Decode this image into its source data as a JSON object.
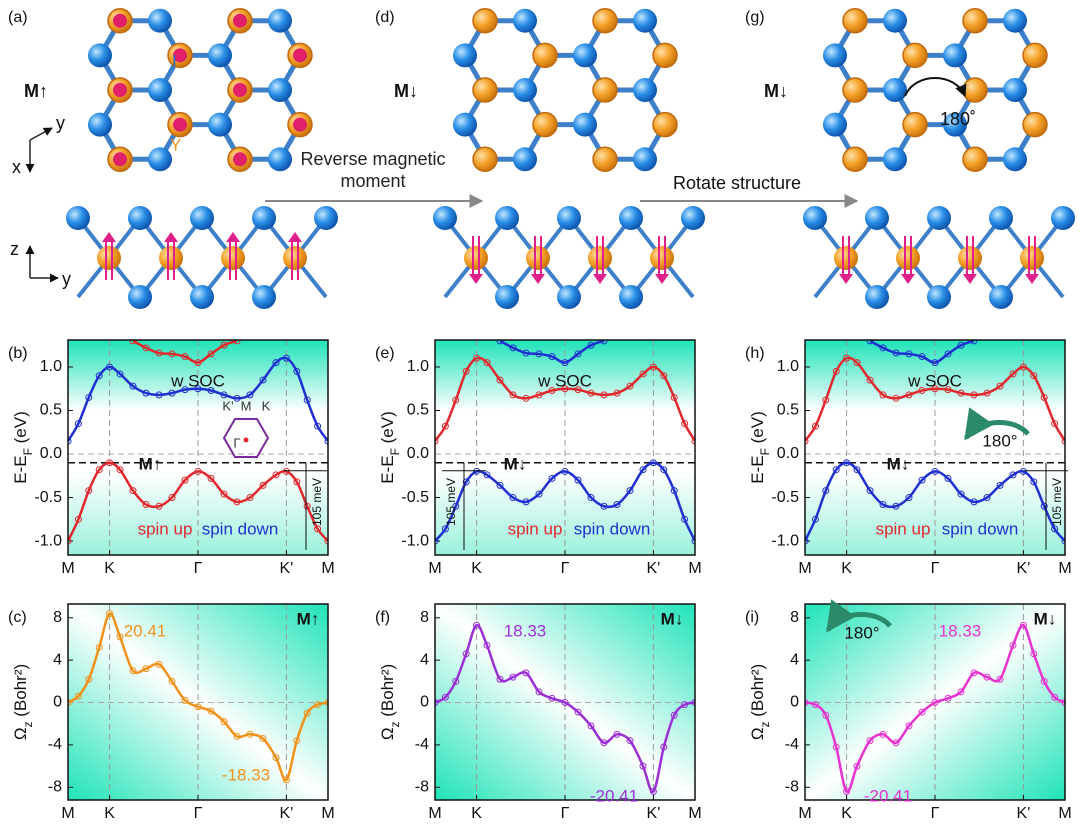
{
  "structures": [
    {
      "label": "(a)",
      "moment": "M↑"
    },
    {
      "label": "(d)",
      "moment": "M↓"
    },
    {
      "label": "(g)",
      "moment": "M↓",
      "rotation": "180˚"
    }
  ],
  "atom_labels": [
    "I",
    "Y"
  ],
  "axes_labels": {
    "top": [
      "x",
      "y"
    ],
    "side": [
      "z",
      "y"
    ]
  },
  "transitions": [
    "Reverse magnetic moment",
    "Rotate structure"
  ],
  "chart_data": [
    {
      "type": "line",
      "panel": "(b)",
      "moment": "M↑",
      "ylabel": {
        "main": "E-E",
        "sub": "F",
        "unit": " (eV)"
      },
      "xlim": [
        0,
        1
      ],
      "ylim": [
        -1.16,
        1.31
      ],
      "xticks": [
        {
          "value": 0,
          "label": "M"
        },
        {
          "value": 0.16,
          "label": "K"
        },
        {
          "value": 0.5,
          "label": "Γ"
        },
        {
          "value": 0.84,
          "label": "K'"
        },
        {
          "value": 1,
          "label": "M"
        }
      ],
      "yticks": [
        {
          "value": -1,
          "label": "-1.0"
        },
        {
          "value": -0.5,
          "label": "-0.5"
        },
        {
          "value": 0,
          "label": "0.0"
        },
        {
          "value": 0.5,
          "label": "0.5"
        },
        {
          "value": 1,
          "label": "1.0"
        }
      ],
      "x": [
        0,
        0.04,
        0.08,
        0.12,
        0.16,
        0.2,
        0.25,
        0.3,
        0.35,
        0.4,
        0.45,
        0.5,
        0.55,
        0.6,
        0.65,
        0.7,
        0.75,
        0.8,
        0.84,
        0.88,
        0.92,
        0.96,
        1
      ],
      "series": [
        {
          "name": "spin up",
          "color": "#e0282e",
          "values": [
            -1.0,
            -0.75,
            -0.42,
            -0.18,
            -0.1,
            -0.18,
            -0.42,
            -0.58,
            -0.6,
            -0.5,
            -0.3,
            -0.2,
            -0.28,
            -0.46,
            -0.55,
            -0.5,
            -0.36,
            -0.24,
            -0.2,
            -0.32,
            -0.6,
            -0.86,
            -1.0
          ]
        },
        {
          "name": "spin down",
          "color": "#2030d0",
          "values": [
            0.15,
            0.35,
            0.65,
            0.9,
            1.0,
            0.92,
            0.78,
            0.7,
            0.68,
            0.7,
            0.74,
            0.75,
            0.73,
            0.68,
            0.64,
            0.68,
            0.85,
            1.05,
            1.1,
            0.95,
            0.62,
            0.32,
            0.15
          ]
        },
        {
          "color": "#e0282e",
          "values": [
            null,
            null,
            null,
            null,
            null,
            null,
            1.3,
            1.22,
            1.16,
            1.15,
            1.12,
            1.05,
            1.15,
            1.25,
            1.3,
            null,
            null,
            null,
            null,
            null,
            null,
            null,
            null
          ]
        }
      ],
      "hline": -0.1,
      "grid": true,
      "annotations": [
        "w SOC",
        "105 meV"
      ],
      "inset": [
        "K'",
        "M",
        "K",
        "Γ"
      ]
    },
    {
      "type": "line",
      "panel": "(c)",
      "moment": "M↑",
      "ylabel": {
        "main": "Ω",
        "sub": "z",
        "unit": " (Bohr²)"
      },
      "xlim": [
        0,
        1
      ],
      "ylim": [
        -9.2,
        9.3
      ],
      "xticks": [
        {
          "value": 0,
          "label": "M"
        },
        {
          "value": 0.16,
          "label": "K"
        },
        {
          "value": 0.5,
          "label": "Γ"
        },
        {
          "value": 0.84,
          "label": "K'"
        },
        {
          "value": 1,
          "label": "M"
        }
      ],
      "yticks": [
        -8,
        -4,
        0,
        4,
        8
      ],
      "x": [
        0,
        0.04,
        0.08,
        0.12,
        0.16,
        0.2,
        0.25,
        0.3,
        0.35,
        0.4,
        0.45,
        0.5,
        0.55,
        0.6,
        0.65,
        0.7,
        0.75,
        0.8,
        0.84,
        0.88,
        0.92,
        0.96,
        1
      ],
      "series": [
        {
          "color": "#f0921a",
          "values": [
            0,
            0.6,
            2.2,
            5.2,
            8.4,
            6.2,
            3.0,
            3.2,
            3.6,
            2.0,
            0.2,
            -0.4,
            -0.8,
            -1.8,
            -3.2,
            -3.0,
            -3.4,
            -5.2,
            -7.3,
            -3.6,
            -1.0,
            -0.2,
            0
          ]
        }
      ],
      "grid": true,
      "annotations": [
        "20.41",
        "-18.33"
      ]
    },
    {
      "type": "line",
      "panel": "(e)",
      "moment": "M↓",
      "ylabel": {
        "main": "E-E",
        "sub": "F",
        "unit": " (eV)"
      },
      "xlim": [
        0,
        1
      ],
      "ylim": [
        -1.16,
        1.31
      ],
      "xticks": [
        {
          "value": 0,
          "label": "M"
        },
        {
          "value": 0.16,
          "label": "K"
        },
        {
          "value": 0.5,
          "label": "Γ"
        },
        {
          "value": 0.84,
          "label": "K'"
        },
        {
          "value": 1,
          "label": "M"
        }
      ],
      "yticks": [
        {
          "value": -1,
          "label": "-1.0"
        },
        {
          "value": -0.5,
          "label": "-0.5"
        },
        {
          "value": 0,
          "label": "0.0"
        },
        {
          "value": 0.5,
          "label": "0.5"
        },
        {
          "value": 1,
          "label": "1.0"
        }
      ],
      "x": [
        0,
        0.04,
        0.08,
        0.12,
        0.16,
        0.2,
        0.25,
        0.3,
        0.35,
        0.4,
        0.45,
        0.5,
        0.55,
        0.6,
        0.65,
        0.7,
        0.75,
        0.8,
        0.84,
        0.88,
        0.92,
        0.96,
        1
      ],
      "series": [
        {
          "name": "spin up",
          "color": "#e0282e",
          "values": [
            0.15,
            0.32,
            0.62,
            0.95,
            1.1,
            1.05,
            0.85,
            0.68,
            0.64,
            0.68,
            0.73,
            0.75,
            0.74,
            0.7,
            0.68,
            0.7,
            0.78,
            0.92,
            1.0,
            0.9,
            0.65,
            0.35,
            0.15
          ]
        },
        {
          "name": "spin down",
          "color": "#2030d0",
          "values": [
            -1.0,
            -0.86,
            -0.6,
            -0.32,
            -0.2,
            -0.24,
            -0.36,
            -0.5,
            -0.55,
            -0.46,
            -0.28,
            -0.2,
            -0.3,
            -0.5,
            -0.6,
            -0.58,
            -0.42,
            -0.18,
            -0.1,
            -0.18,
            -0.42,
            -0.75,
            -1.0
          ]
        },
        {
          "color": "#2030d0",
          "values": [
            null,
            null,
            null,
            null,
            null,
            null,
            1.3,
            1.22,
            1.16,
            1.15,
            1.12,
            1.05,
            1.15,
            1.25,
            1.3,
            null,
            null,
            null,
            null,
            null,
            null,
            null,
            null
          ]
        }
      ],
      "hline": -0.1,
      "grid": true,
      "annotations": [
        "w SOC",
        "105 meV"
      ]
    },
    {
      "type": "line",
      "panel": "(f)",
      "moment": "M↓",
      "ylabel": {
        "main": "Ω",
        "sub": "z",
        "unit": " (Bohr²)"
      },
      "xlim": [
        0,
        1
      ],
      "ylim": [
        -9.2,
        9.3
      ],
      "xticks": [
        {
          "value": 0,
          "label": "M"
        },
        {
          "value": 0.16,
          "label": "K"
        },
        {
          "value": 0.5,
          "label": "Γ"
        },
        {
          "value": 0.84,
          "label": "K'"
        },
        {
          "value": 1,
          "label": "M"
        }
      ],
      "yticks": [
        -8,
        -4,
        0,
        4,
        8
      ],
      "x": [
        0,
        0.04,
        0.08,
        0.12,
        0.16,
        0.2,
        0.25,
        0.3,
        0.35,
        0.4,
        0.45,
        0.5,
        0.55,
        0.6,
        0.65,
        0.7,
        0.75,
        0.8,
        0.84,
        0.88,
        0.92,
        0.96,
        1
      ],
      "series": [
        {
          "color": "#9b2fd6",
          "values": [
            0,
            0.5,
            2.0,
            4.6,
            7.3,
            5.4,
            2.2,
            2.4,
            2.8,
            1.0,
            0.4,
            0.0,
            -0.9,
            -2.2,
            -3.8,
            -3.0,
            -3.6,
            -6.0,
            -8.4,
            -4.2,
            -1.2,
            -0.2,
            0
          ]
        }
      ],
      "grid": true,
      "annotations": [
        "18.33",
        "-20.41"
      ]
    },
    {
      "type": "line",
      "panel": "(h)",
      "moment": "M↓",
      "ylabel": {
        "main": "E-E",
        "sub": "F",
        "unit": " (eV)"
      },
      "xlim": [
        0,
        1
      ],
      "ylim": [
        -1.16,
        1.31
      ],
      "xticks": [
        {
          "value": 0,
          "label": "M"
        },
        {
          "value": 0.16,
          "label": "K"
        },
        {
          "value": 0.5,
          "label": "Γ"
        },
        {
          "value": 0.84,
          "label": "K'"
        },
        {
          "value": 1,
          "label": "M"
        }
      ],
      "yticks": [
        {
          "value": -1,
          "label": "-1.0"
        },
        {
          "value": -0.5,
          "label": "-0.5"
        },
        {
          "value": 0,
          "label": "0.0"
        },
        {
          "value": 0.5,
          "label": "0.5"
        },
        {
          "value": 1,
          "label": "1.0"
        }
      ],
      "x": [
        0,
        0.04,
        0.08,
        0.12,
        0.16,
        0.2,
        0.25,
        0.3,
        0.35,
        0.4,
        0.45,
        0.5,
        0.55,
        0.6,
        0.65,
        0.7,
        0.75,
        0.8,
        0.84,
        0.88,
        0.92,
        0.96,
        1
      ],
      "series": [
        {
          "name": "spin up",
          "color": "#e0282e",
          "values": [
            0.15,
            0.32,
            0.62,
            0.95,
            1.1,
            1.05,
            0.85,
            0.68,
            0.64,
            0.68,
            0.73,
            0.75,
            0.74,
            0.7,
            0.68,
            0.7,
            0.78,
            0.92,
            1.0,
            0.9,
            0.65,
            0.35,
            0.15
          ]
        },
        {
          "name": "spin down",
          "color": "#2030d0",
          "values": [
            -1.0,
            -0.75,
            -0.42,
            -0.18,
            -0.1,
            -0.18,
            -0.42,
            -0.58,
            -0.6,
            -0.5,
            -0.3,
            -0.2,
            -0.28,
            -0.46,
            -0.55,
            -0.5,
            -0.36,
            -0.24,
            -0.2,
            -0.32,
            -0.6,
            -0.86,
            -1.0
          ]
        },
        {
          "color": "#2030d0",
          "values": [
            null,
            null,
            null,
            null,
            null,
            null,
            1.3,
            1.22,
            1.16,
            1.15,
            1.12,
            1.05,
            1.15,
            1.25,
            1.3,
            null,
            null,
            null,
            null,
            null,
            null,
            null,
            null
          ]
        }
      ],
      "hline": -0.1,
      "grid": true,
      "annotations": [
        "w SOC",
        "105 meV",
        "180°"
      ]
    },
    {
      "type": "line",
      "panel": "(i)",
      "moment": "M↓",
      "ylabel": {
        "main": "Ω",
        "sub": "z",
        "unit": " (Bohr²)"
      },
      "xlim": [
        0,
        1
      ],
      "ylim": [
        -9.2,
        9.3
      ],
      "xticks": [
        {
          "value": 0,
          "label": "M"
        },
        {
          "value": 0.16,
          "label": "K"
        },
        {
          "value": 0.5,
          "label": "Γ"
        },
        {
          "value": 0.84,
          "label": "K'"
        },
        {
          "value": 1,
          "label": "M"
        }
      ],
      "yticks": [
        -8,
        -4,
        0,
        4,
        8
      ],
      "x": [
        0,
        0.04,
        0.08,
        0.12,
        0.16,
        0.2,
        0.25,
        0.3,
        0.35,
        0.4,
        0.45,
        0.5,
        0.55,
        0.6,
        0.65,
        0.7,
        0.75,
        0.8,
        0.84,
        0.88,
        0.92,
        0.96,
        1
      ],
      "series": [
        {
          "color": "#e633d0",
          "values": [
            0,
            -0.2,
            -1.2,
            -4.2,
            -8.4,
            -6.0,
            -3.6,
            -3.0,
            -3.8,
            -2.2,
            -0.9,
            0.0,
            0.4,
            1.0,
            2.8,
            2.4,
            2.2,
            5.4,
            7.3,
            4.6,
            2.0,
            0.5,
            0
          ]
        }
      ],
      "grid": true,
      "annotations": [
        "180°",
        "18.33",
        "-20.41"
      ]
    }
  ]
}
